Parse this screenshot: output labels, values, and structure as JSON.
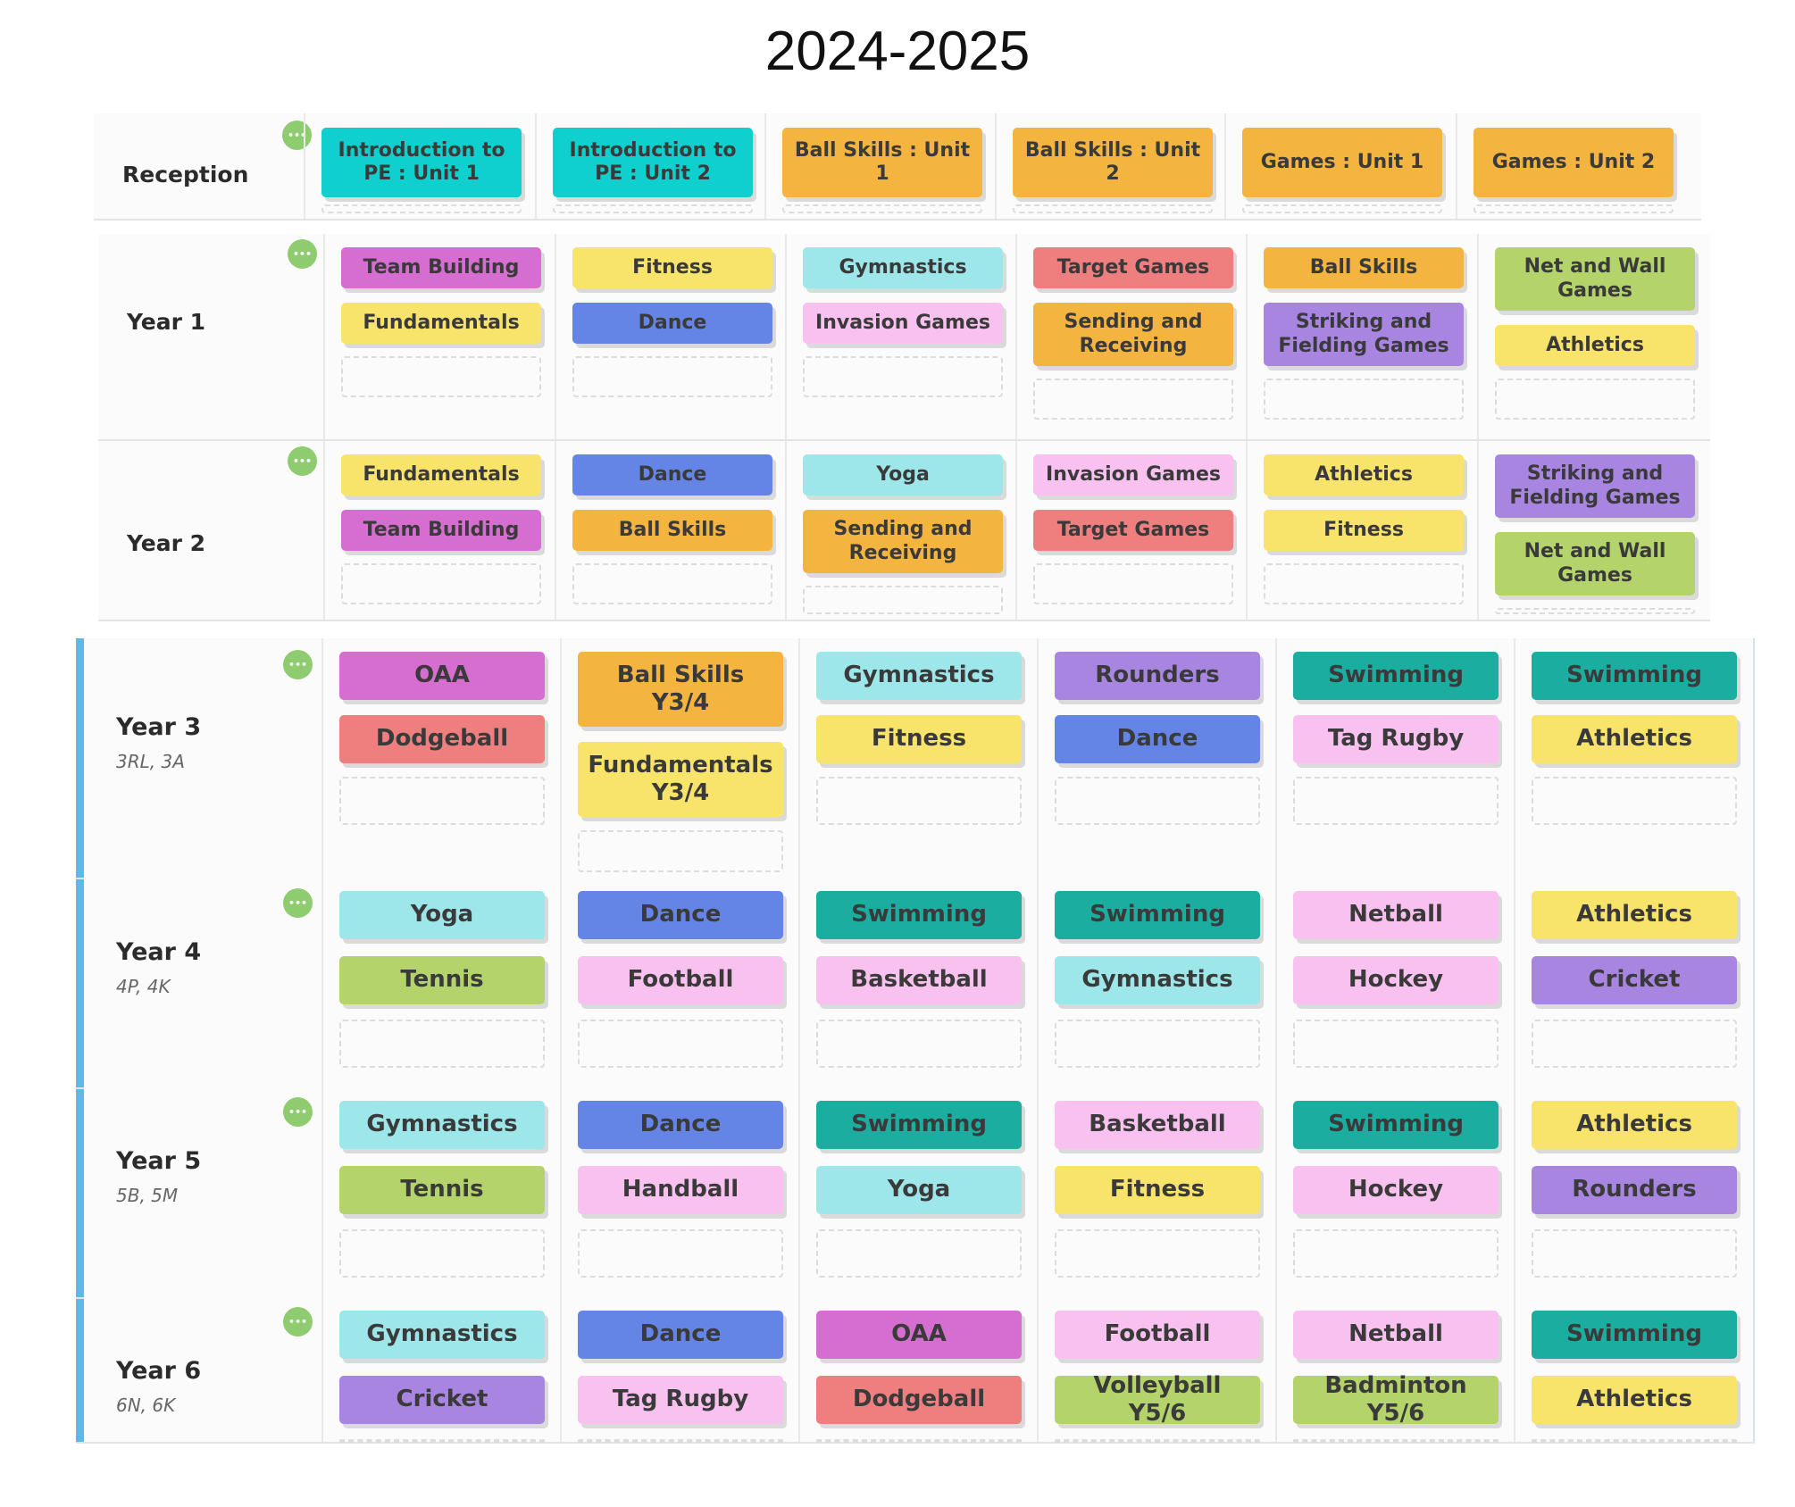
{
  "title": "2024-2025",
  "colors": {
    "teal": "#0fcfcf",
    "orange": "#f4b440",
    "magenta": "#d66ed2",
    "yellow": "#f8e46a",
    "blue": "#6585e6",
    "cyan": "#9de6e9",
    "pink": "#f9c1ef",
    "salmon": "#ef7f7f",
    "purple": "#a985e2",
    "green": "#b4d36a",
    "darkteal": "#1aada0"
  },
  "rows": [
    {
      "label": "Reception",
      "classes": "",
      "cells": [
        [
          "Introduction to PE : Unit 1"
        ],
        [
          "Introduction to PE : Unit 2"
        ],
        [
          "Ball Skills : Unit 1"
        ],
        [
          "Ball Skills : Unit 2"
        ],
        [
          "Games : Unit 1"
        ],
        [
          "Games : Unit 2"
        ]
      ]
    },
    {
      "label": "Year 1",
      "classes": "",
      "cells": [
        [
          "Team Building",
          "Fundamentals"
        ],
        [
          "Fitness",
          "Dance"
        ],
        [
          "Gymnastics",
          "Invasion Games"
        ],
        [
          "Target Games",
          "Sending and Receiving"
        ],
        [
          "Ball Skills",
          "Striking and Fielding Games"
        ],
        [
          "Net and Wall Games",
          "Athletics"
        ]
      ]
    },
    {
      "label": "Year 2",
      "classes": "",
      "cells": [
        [
          "Fundamentals",
          "Team Building"
        ],
        [
          "Dance",
          "Ball Skills"
        ],
        [
          "Yoga",
          "Sending and Receiving"
        ],
        [
          "Invasion Games",
          "Target Games"
        ],
        [
          "Athletics",
          "Fitness"
        ],
        [
          "Striking and Fielding Games",
          "Net and Wall Games"
        ]
      ]
    },
    {
      "label": "Year 3",
      "classes": "3RL, 3A",
      "cells": [
        [
          "OAA",
          "Dodgeball"
        ],
        [
          "Ball Skills Y3/4",
          "Fundamentals Y3/4"
        ],
        [
          "Gymnastics",
          "Fitness"
        ],
        [
          "Rounders",
          "Dance"
        ],
        [
          "Swimming",
          "Tag Rugby"
        ],
        [
          "Swimming",
          "Athletics"
        ]
      ]
    },
    {
      "label": "Year 4",
      "classes": "4P, 4K",
      "cells": [
        [
          "Yoga",
          "Tennis"
        ],
        [
          "Dance",
          "Football"
        ],
        [
          "Swimming",
          "Basketball"
        ],
        [
          "Swimming",
          "Gymnastics"
        ],
        [
          "Netball",
          "Hockey"
        ],
        [
          "Athletics",
          "Cricket"
        ]
      ]
    },
    {
      "label": "Year 5",
      "classes": "5B, 5M",
      "cells": [
        [
          "Gymnastics",
          "Tennis"
        ],
        [
          "Dance",
          "Handball"
        ],
        [
          "Swimming",
          "Yoga"
        ],
        [
          "Basketball",
          "Fitness"
        ],
        [
          "Swimming",
          "Hockey"
        ],
        [
          "Athletics",
          "Rounders"
        ]
      ]
    },
    {
      "label": "Year 6",
      "classes": "6N, 6K",
      "cells": [
        [
          "Gymnastics",
          "Cricket"
        ],
        [
          "Dance",
          "Tag Rugby"
        ],
        [
          "OAA",
          "Dodgeball"
        ],
        [
          "Football",
          "Volleyball Y5/6"
        ],
        [
          "Netball",
          "Badminton Y5/6"
        ],
        [
          "Swimming",
          "Athletics"
        ]
      ]
    }
  ],
  "chipColors": [
    [
      [
        "teal"
      ],
      [
        "teal"
      ],
      [
        "orange"
      ],
      [
        "orange"
      ],
      [
        "orange"
      ],
      [
        "orange"
      ]
    ],
    [
      [
        "magenta",
        "yellow"
      ],
      [
        "yellow",
        "blue"
      ],
      [
        "cyan",
        "pink"
      ],
      [
        "salmon",
        "orange"
      ],
      [
        "orange",
        "purple"
      ],
      [
        "green",
        "yellow"
      ]
    ],
    [
      [
        "yellow",
        "magenta"
      ],
      [
        "blue",
        "orange"
      ],
      [
        "cyan",
        "orange"
      ],
      [
        "pink",
        "salmon"
      ],
      [
        "yellow",
        "yellow"
      ],
      [
        "purple",
        "green"
      ]
    ],
    [
      [
        "magenta",
        "salmon"
      ],
      [
        "orange",
        "yellow"
      ],
      [
        "cyan",
        "yellow"
      ],
      [
        "purple",
        "blue"
      ],
      [
        "darkteal",
        "pink"
      ],
      [
        "darkteal",
        "yellow"
      ]
    ],
    [
      [
        "cyan",
        "green"
      ],
      [
        "blue",
        "pink"
      ],
      [
        "darkteal",
        "pink"
      ],
      [
        "darkteal",
        "cyan"
      ],
      [
        "pink",
        "pink"
      ],
      [
        "yellow",
        "purple"
      ]
    ],
    [
      [
        "cyan",
        "green"
      ],
      [
        "blue",
        "pink"
      ],
      [
        "darkteal",
        "cyan"
      ],
      [
        "pink",
        "yellow"
      ],
      [
        "darkteal",
        "pink"
      ],
      [
        "yellow",
        "purple"
      ]
    ],
    [
      [
        "cyan",
        "purple"
      ],
      [
        "blue",
        "pink"
      ],
      [
        "magenta",
        "salmon"
      ],
      [
        "pink",
        "green"
      ],
      [
        "pink",
        "green"
      ],
      [
        "darkteal",
        "yellow"
      ]
    ]
  ]
}
